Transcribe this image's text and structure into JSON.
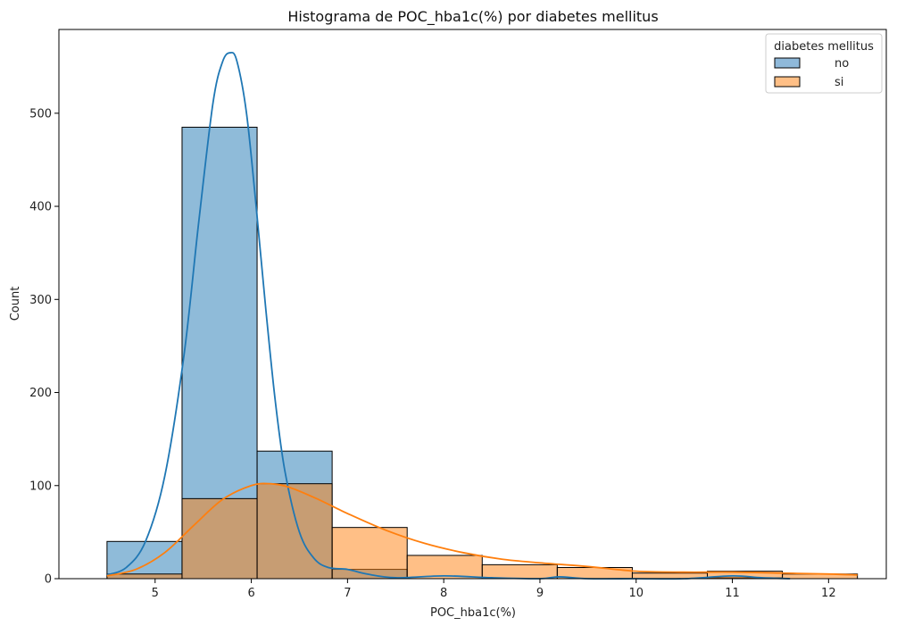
{
  "chart_data": {
    "type": "bar",
    "subtype": "overlaid-histogram-with-kde",
    "title": "Histograma de POC_hba1c(%) por diabetes mellitus",
    "xlabel": "POC_hba1c(%)",
    "ylabel": "Count",
    "xlim": [
      4.0,
      12.6
    ],
    "ylim": [
      0,
      590
    ],
    "xticks": [
      5,
      6,
      7,
      8,
      9,
      10,
      11,
      12
    ],
    "yticks": [
      0,
      100,
      200,
      300,
      400,
      500
    ],
    "grid": false,
    "legend": {
      "title": "diabetes mellitus",
      "placement": "top-right",
      "entries": [
        "no",
        "si"
      ]
    },
    "bin_edges": [
      4.5,
      5.28,
      6.06,
      6.84,
      7.62,
      8.4,
      9.18,
      9.96,
      10.74,
      11.52,
      12.3
    ],
    "series": [
      {
        "name": "no",
        "color": "#1f77b4",
        "fill": "#8fb9da",
        "counts": [
          40,
          485,
          137,
          10,
          0,
          0,
          0,
          0,
          1,
          0
        ],
        "kde": {
          "x": [
            4.5,
            4.7,
            4.9,
            5.1,
            5.3,
            5.45,
            5.6,
            5.7,
            5.78,
            5.85,
            5.95,
            6.05,
            6.15,
            6.25,
            6.35,
            6.5,
            6.65,
            6.8,
            7.0,
            7.2,
            7.5,
            8.0,
            8.5,
            9.0,
            9.2,
            9.5,
            10.0,
            10.5,
            11.0,
            11.3,
            11.6
          ],
          "y": [
            4,
            12,
            40,
            110,
            240,
            380,
            510,
            555,
            565,
            556,
            500,
            400,
            290,
            190,
            115,
            50,
            22,
            12,
            10,
            5,
            1,
            3,
            1,
            0,
            2,
            0,
            0,
            0,
            3,
            1,
            0
          ]
        }
      },
      {
        "name": "si",
        "color": "#ff7f0e",
        "fill": "#ffbf86",
        "counts": [
          5,
          86,
          102,
          55,
          25,
          15,
          12,
          6,
          8,
          5
        ],
        "kde": {
          "x": [
            4.5,
            4.8,
            5.1,
            5.4,
            5.7,
            6.0,
            6.2,
            6.4,
            6.7,
            7.0,
            7.4,
            7.8,
            8.2,
            8.6,
            9.0,
            9.5,
            10.0,
            10.5,
            11.0,
            11.5,
            12.0,
            12.3
          ],
          "y": [
            3,
            10,
            28,
            57,
            85,
            100,
            102,
            98,
            85,
            70,
            52,
            38,
            28,
            21,
            17,
            13,
            8,
            7,
            7,
            6,
            5,
            4
          ]
        }
      }
    ]
  }
}
